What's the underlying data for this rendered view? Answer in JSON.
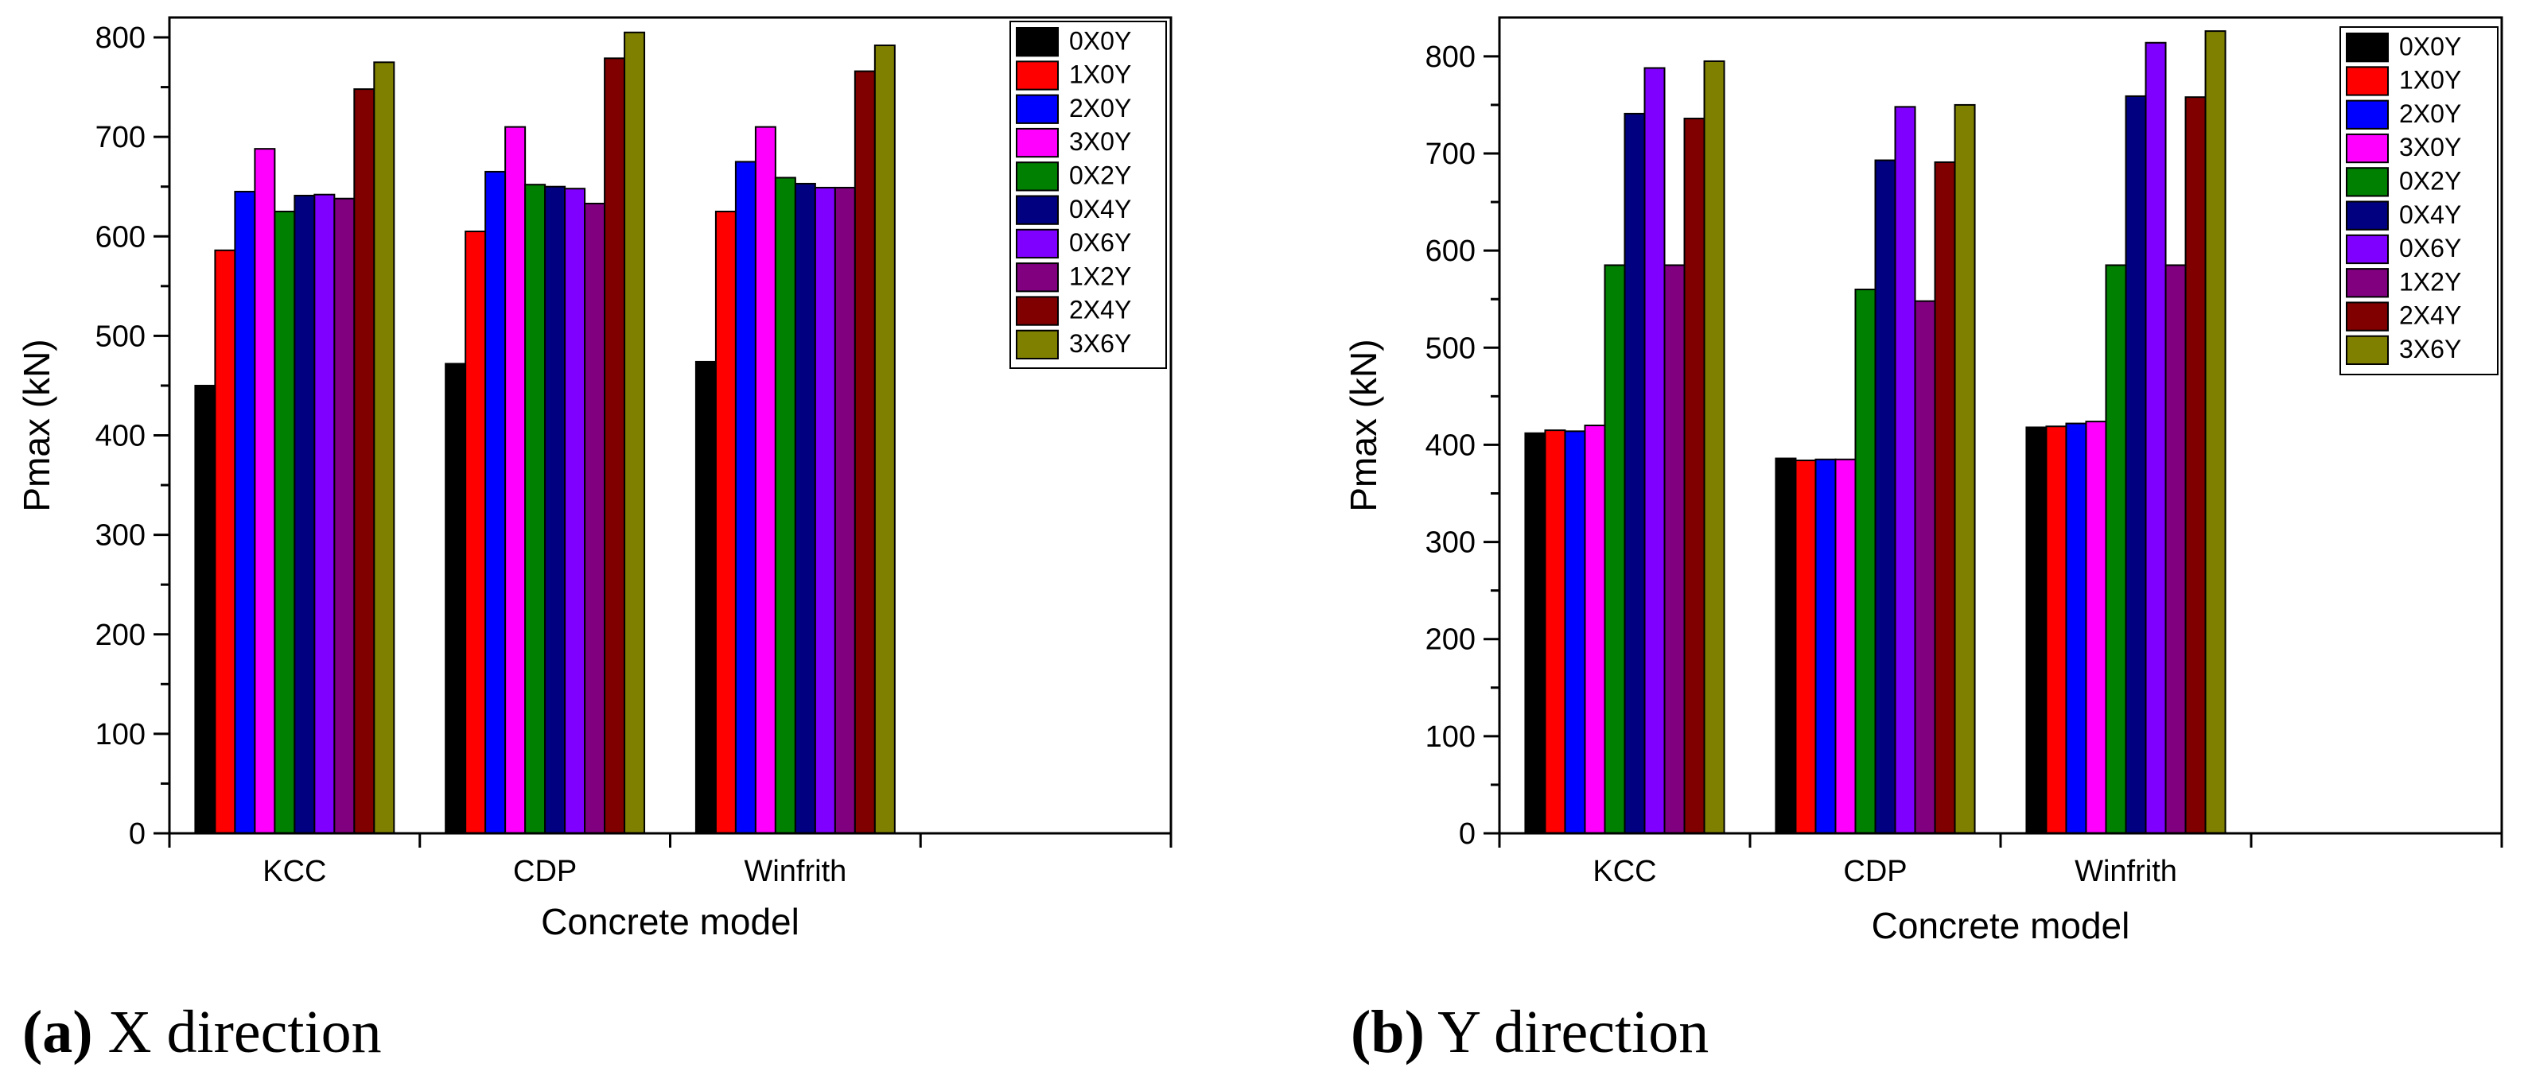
{
  "chart_data": [
    {
      "type": "bar",
      "panel": "a",
      "xlabel": "Concrete model",
      "ylabel": "Pmax (kN)",
      "categories": [
        "KCC",
        "CDP",
        "Winfrith"
      ],
      "ylim": [
        0,
        820
      ],
      "yticks": [
        0,
        100,
        200,
        300,
        400,
        500,
        600,
        700,
        800
      ],
      "x_slots": 4,
      "grid": false,
      "legend": "top-right",
      "series": [
        {
          "name": "0X0Y",
          "color": "#000000",
          "values": [
            450,
            472,
            474
          ]
        },
        {
          "name": "1X0Y",
          "color": "#ff0000",
          "values": [
            586,
            605,
            625
          ]
        },
        {
          "name": "2X0Y",
          "color": "#0000ff",
          "values": [
            645,
            665,
            675
          ]
        },
        {
          "name": "3X0Y",
          "color": "#ff00ff",
          "values": [
            688,
            710,
            710
          ]
        },
        {
          "name": "0X2Y",
          "color": "#008000",
          "values": [
            625,
            652,
            659
          ]
        },
        {
          "name": "0X4Y",
          "color": "#000080",
          "values": [
            641,
            650,
            653
          ]
        },
        {
          "name": "0X6Y",
          "color": "#8000ff",
          "values": [
            642,
            648,
            649
          ]
        },
        {
          "name": "1X2Y",
          "color": "#800080",
          "values": [
            638,
            633,
            649
          ]
        },
        {
          "name": "2X4Y",
          "color": "#800000",
          "values": [
            748,
            779,
            766
          ]
        },
        {
          "name": "3X6Y",
          "color": "#808000",
          "values": [
            775,
            805,
            792
          ]
        }
      ]
    },
    {
      "type": "bar",
      "panel": "b",
      "xlabel": "Concrete model",
      "ylabel": "Pmax (kN)",
      "categories": [
        "KCC",
        "CDP",
        "Winfrith"
      ],
      "ylim": [
        0,
        840
      ],
      "yticks": [
        0,
        100,
        200,
        300,
        400,
        500,
        600,
        700,
        800
      ],
      "x_slots": 4,
      "grid": false,
      "legend": "top-right",
      "series": [
        {
          "name": "0X0Y",
          "color": "#000000",
          "values": [
            412,
            386,
            418
          ]
        },
        {
          "name": "1X0Y",
          "color": "#ff0000",
          "values": [
            415,
            384,
            419
          ]
        },
        {
          "name": "2X0Y",
          "color": "#0000ff",
          "values": [
            414,
            385,
            422
          ]
        },
        {
          "name": "3X0Y",
          "color": "#ff00ff",
          "values": [
            420,
            385,
            424
          ]
        },
        {
          "name": "0X2Y",
          "color": "#008000",
          "values": [
            585,
            560,
            585
          ]
        },
        {
          "name": "0X4Y",
          "color": "#000080",
          "values": [
            741,
            693,
            759
          ]
        },
        {
          "name": "0X6Y",
          "color": "#8000ff",
          "values": [
            788,
            748,
            814
          ]
        },
        {
          "name": "1X2Y",
          "color": "#800080",
          "values": [
            585,
            548,
            585
          ]
        },
        {
          "name": "2X4Y",
          "color": "#800000",
          "values": [
            736,
            691,
            758
          ]
        },
        {
          "name": "3X6Y",
          "color": "#808000",
          "values": [
            795,
            750,
            826
          ]
        }
      ]
    }
  ],
  "captions": [
    {
      "letter": "(a)",
      "text": " X direction"
    },
    {
      "letter": "(b)",
      "text": " Y direction"
    }
  ]
}
